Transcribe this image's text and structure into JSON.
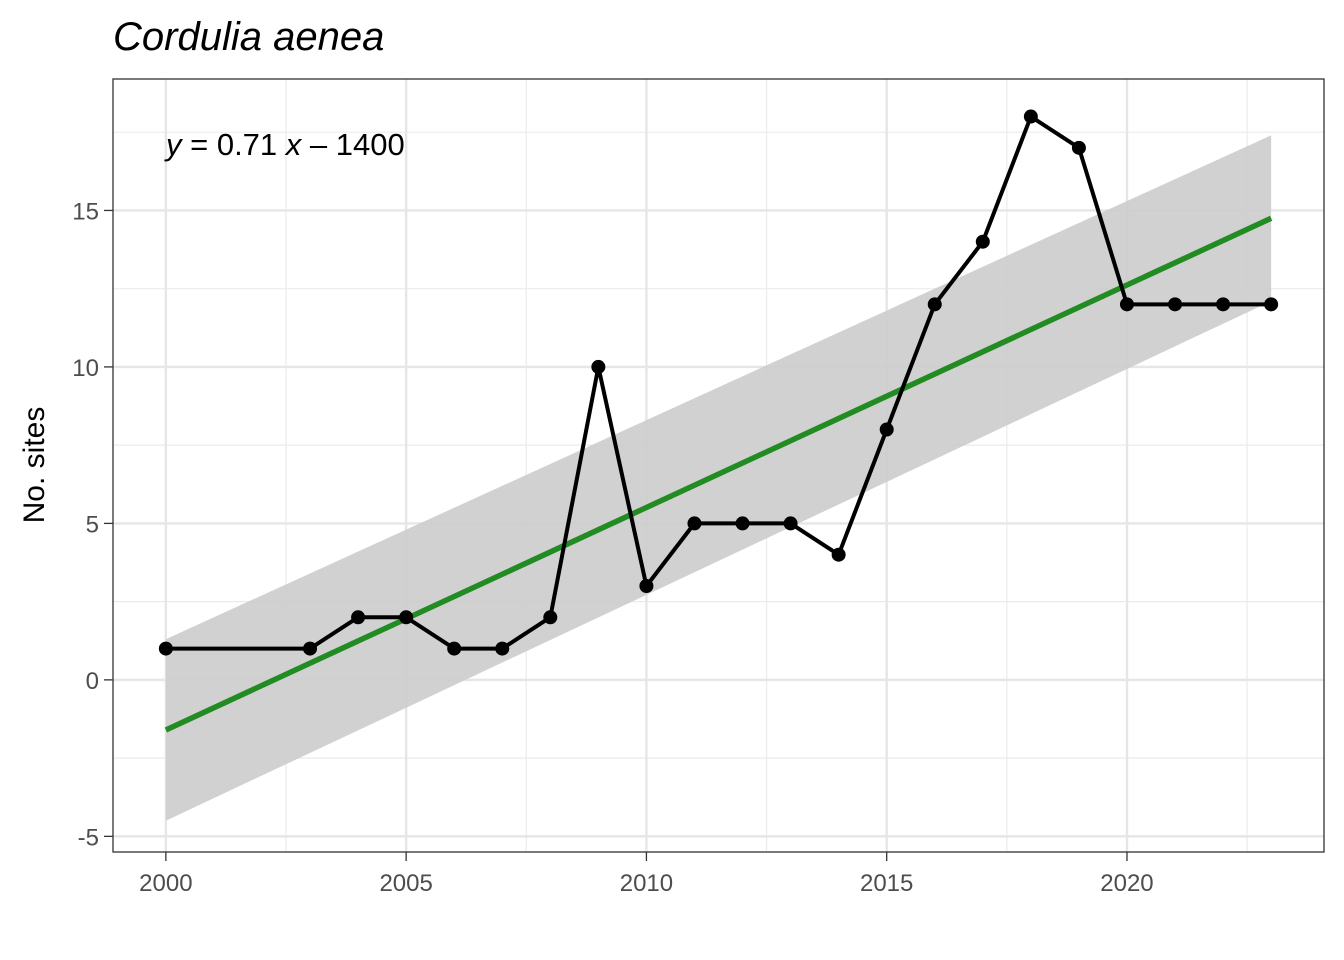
{
  "chart_data": {
    "type": "line",
    "title": "Cordulia aenea",
    "xlabel": "",
    "ylabel": "No. sites",
    "xlim": [
      1998.9,
      2024.1
    ],
    "ylim": [
      -5.5,
      19.2
    ],
    "x_ticks": [
      2000,
      2005,
      2010,
      2015,
      2020
    ],
    "y_ticks": [
      -5,
      0,
      5,
      10,
      15
    ],
    "x_tick_labels": [
      "2000",
      "2005",
      "2010",
      "2015",
      "2020"
    ],
    "y_tick_labels": [
      "-5",
      "0",
      "5",
      "10",
      "15"
    ],
    "grid": true,
    "legend": "none",
    "series": [
      {
        "x": [
          2000,
          2003,
          2004,
          2005,
          2006,
          2007,
          2008,
          2009,
          2010,
          2011,
          2012,
          2013,
          2014,
          2015,
          2016,
          2017,
          2018,
          2019,
          2020,
          2021,
          2022,
          2023
        ],
        "values": [
          1,
          1,
          2,
          2,
          1,
          1,
          2,
          10,
          3,
          5,
          5,
          5,
          4,
          8,
          12,
          14,
          18,
          17,
          12,
          12,
          12,
          12
        ],
        "color": "#000000"
      }
    ],
    "regression": {
      "x": [
        2000,
        2023
      ],
      "values": [
        -1.6,
        14.75
      ],
      "color": "#228B22",
      "ci_lower": [
        -4.5,
        12.1
      ],
      "ci_upper": [
        1.3,
        17.4
      ],
      "ci_color": "#cccccc"
    },
    "equation": {
      "y_var": "y",
      "middle": " = 0.71 ",
      "x_var": "x",
      "tail": " – 1400"
    }
  }
}
